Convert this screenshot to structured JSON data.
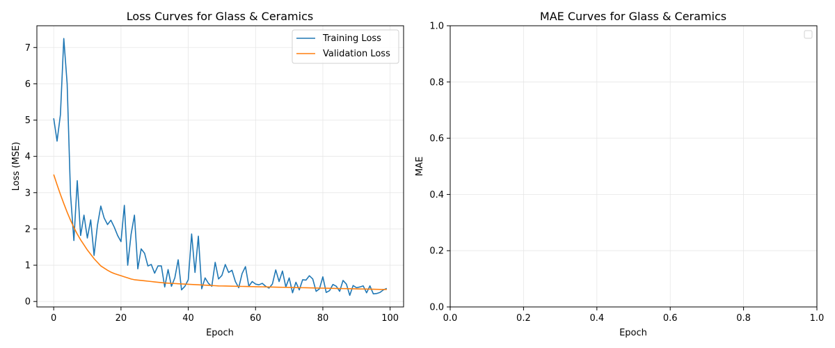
{
  "chart_data": [
    {
      "type": "line",
      "title": "Loss Curves for Glass & Ceramics",
      "xlabel": "Epoch",
      "ylabel": "Loss (MSE)",
      "xlim": [
        -5,
        104
      ],
      "ylim": [
        -0.15,
        7.6
      ],
      "xticks": [
        0,
        20,
        40,
        60,
        80,
        100
      ],
      "yticks": [
        0,
        1,
        2,
        3,
        4,
        5,
        6,
        7
      ],
      "grid": true,
      "legend": "upper right",
      "series": [
        {
          "name": "Training Loss",
          "color": "#1f77b4",
          "x": [
            0,
            1,
            2,
            3,
            4,
            5,
            6,
            7,
            8,
            9,
            10,
            11,
            12,
            13,
            14,
            15,
            16,
            17,
            18,
            19,
            20,
            21,
            22,
            23,
            24,
            25,
            26,
            27,
            28,
            29,
            30,
            31,
            32,
            33,
            34,
            35,
            36,
            37,
            38,
            39,
            40,
            41,
            42,
            43,
            44,
            45,
            46,
            47,
            48,
            49,
            50,
            51,
            52,
            53,
            54,
            55,
            56,
            57,
            58,
            59,
            60,
            61,
            62,
            63,
            64,
            65,
            66,
            67,
            68,
            69,
            70,
            71,
            72,
            73,
            74,
            75,
            76,
            77,
            78,
            79,
            80,
            81,
            82,
            83,
            84,
            85,
            86,
            87,
            88,
            89,
            90,
            91,
            92,
            93,
            94,
            95,
            96,
            97,
            98,
            99
          ],
          "values": [
            5.05,
            4.42,
            5.15,
            7.25,
            6.0,
            2.95,
            1.68,
            3.33,
            1.82,
            2.38,
            1.75,
            2.25,
            1.27,
            2.1,
            2.63,
            2.3,
            2.12,
            2.24,
            2.05,
            1.82,
            1.65,
            2.65,
            1.0,
            1.85,
            2.38,
            0.9,
            1.45,
            1.33,
            0.98,
            1.02,
            0.78,
            0.98,
            0.98,
            0.4,
            0.88,
            0.42,
            0.65,
            1.15,
            0.32,
            0.42,
            0.6,
            1.86,
            0.8,
            1.8,
            0.35,
            0.65,
            0.5,
            0.42,
            1.08,
            0.62,
            0.72,
            1.02,
            0.8,
            0.86,
            0.55,
            0.38,
            0.77,
            0.96,
            0.42,
            0.55,
            0.48,
            0.46,
            0.5,
            0.42,
            0.37,
            0.48,
            0.87,
            0.55,
            0.84,
            0.4,
            0.65,
            0.24,
            0.53,
            0.32,
            0.6,
            0.59,
            0.71,
            0.62,
            0.28,
            0.35,
            0.68,
            0.25,
            0.3,
            0.47,
            0.42,
            0.28,
            0.58,
            0.48,
            0.17,
            0.44,
            0.38,
            0.4,
            0.43,
            0.24,
            0.43,
            0.21,
            0.22,
            0.25,
            0.32,
            0.36
          ]
        },
        {
          "name": "Validation Loss",
          "color": "#ff7f0e",
          "x": [
            0,
            1,
            2,
            3,
            4,
            5,
            6,
            7,
            8,
            9,
            10,
            11,
            12,
            13,
            14,
            15,
            16,
            17,
            18,
            19,
            20,
            21,
            22,
            23,
            24,
            25,
            26,
            27,
            28,
            29,
            30,
            31,
            32,
            33,
            34,
            35,
            36,
            37,
            38,
            39,
            40,
            41,
            42,
            43,
            44,
            45,
            46,
            47,
            48,
            49,
            50,
            51,
            52,
            53,
            54,
            55,
            56,
            57,
            58,
            59,
            60,
            61,
            62,
            63,
            64,
            65,
            66,
            67,
            68,
            69,
            70,
            71,
            72,
            73,
            74,
            75,
            76,
            77,
            78,
            79,
            80,
            81,
            82,
            83,
            84,
            85,
            86,
            87,
            88,
            89,
            90,
            91,
            92,
            93,
            94,
            95,
            96,
            97,
            98,
            99
          ],
          "values": [
            3.5,
            3.22,
            2.95,
            2.7,
            2.46,
            2.24,
            2.04,
            1.86,
            1.7,
            1.56,
            1.42,
            1.3,
            1.18,
            1.08,
            0.98,
            0.92,
            0.86,
            0.81,
            0.77,
            0.74,
            0.71,
            0.68,
            0.65,
            0.62,
            0.6,
            0.59,
            0.58,
            0.57,
            0.56,
            0.55,
            0.54,
            0.53,
            0.52,
            0.51,
            0.505,
            0.5,
            0.495,
            0.49,
            0.485,
            0.48,
            0.475,
            0.47,
            0.465,
            0.46,
            0.455,
            0.45,
            0.445,
            0.44,
            0.435,
            0.43,
            0.428,
            0.426,
            0.424,
            0.422,
            0.42,
            0.418,
            0.416,
            0.414,
            0.412,
            0.41,
            0.408,
            0.406,
            0.404,
            0.402,
            0.4,
            0.398,
            0.396,
            0.394,
            0.392,
            0.39,
            0.388,
            0.386,
            0.384,
            0.382,
            0.38,
            0.378,
            0.376,
            0.374,
            0.372,
            0.37,
            0.368,
            0.366,
            0.364,
            0.362,
            0.36,
            0.358,
            0.356,
            0.354,
            0.352,
            0.35,
            0.348,
            0.346,
            0.344,
            0.342,
            0.34,
            0.338,
            0.336,
            0.334,
            0.332,
            0.33
          ]
        }
      ]
    },
    {
      "type": "line",
      "title": "MAE Curves for Glass & Ceramics",
      "xlabel": "Epoch",
      "ylabel": "MAE",
      "xlim": [
        0,
        1
      ],
      "ylim": [
        0,
        1
      ],
      "xticks": [
        "0.0",
        "0.2",
        "0.4",
        "0.6",
        "0.8",
        "1.0"
      ],
      "yticks": [
        "0.0",
        "0.2",
        "0.4",
        "0.6",
        "0.8",
        "1.0"
      ],
      "grid": true,
      "legend": "upper right (empty)",
      "series": []
    }
  ]
}
